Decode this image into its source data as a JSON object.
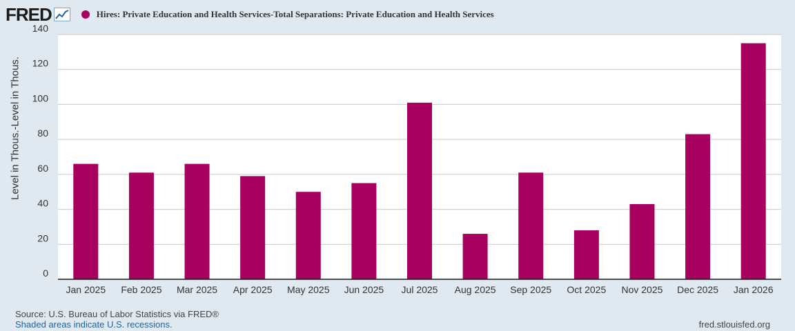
{
  "brand": {
    "logo_text": "FRED"
  },
  "colors": {
    "bar": "#a8005f",
    "plot_bg": "#ffffff",
    "page_bg": "#e1e9f0",
    "grid": "#c8c8c8"
  },
  "chart_data": {
    "type": "bar",
    "title": "Hires: Private Education and Health Services-Total Separations: Private Education and Health Services",
    "ylabel": "Level in Thous.-Level in Thous.",
    "xlabel": "",
    "categories": [
      "Jan 2025",
      "Feb 2025",
      "Mar 2025",
      "Apr 2025",
      "May 2025",
      "Jun 2025",
      "Jul 2025",
      "Aug 2025",
      "Sep 2025",
      "Oct 2025",
      "Nov 2025",
      "Dec 2025",
      "Jan 2026"
    ],
    "values": [
      66,
      61,
      66,
      59,
      50,
      55,
      101,
      26,
      61,
      28,
      43,
      83,
      135
    ],
    "ylim": [
      0,
      140
    ],
    "yticks": [
      0,
      20,
      40,
      60,
      80,
      100,
      120,
      140
    ],
    "grid": true
  },
  "footer": {
    "source": "Source: U.S. Bureau of Labor Statistics via FRED®",
    "shaded": "Shaded areas indicate U.S. recessions.",
    "site": "fred.stlouisfed.org"
  }
}
